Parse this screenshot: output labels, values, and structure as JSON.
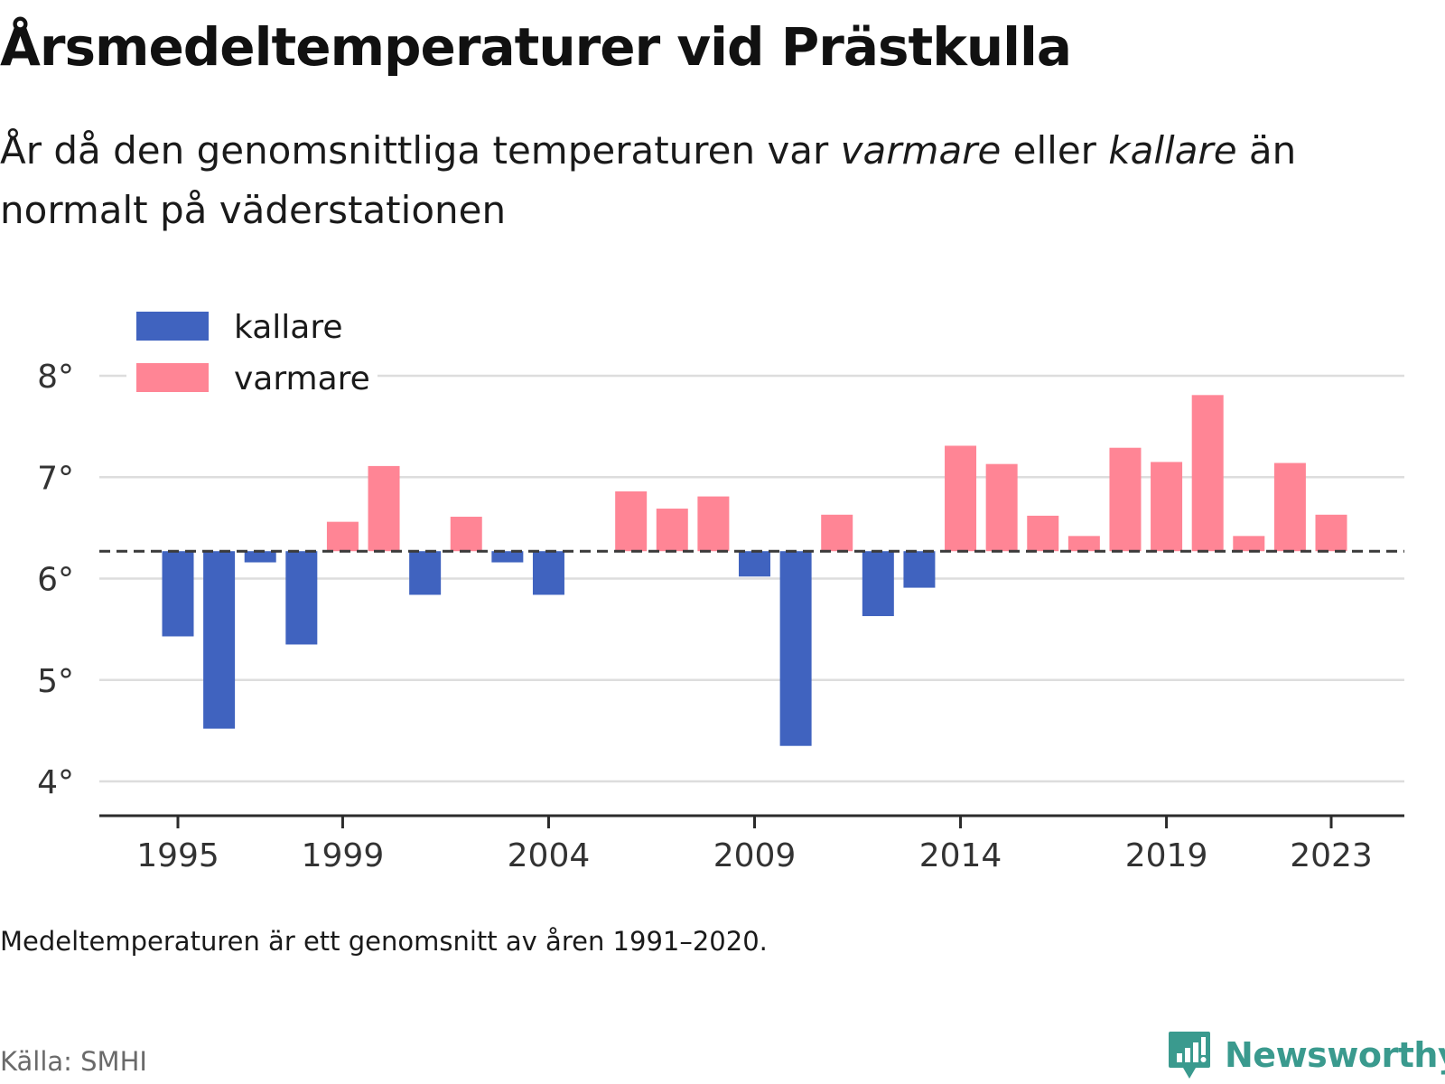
{
  "header": {
    "title": "Årsmedeltemperaturer vid Prästkulla",
    "subtitle_part1": "År då den genomsnittliga temperaturen var ",
    "subtitle_em1": "varmare",
    "subtitle_part2": " eller ",
    "subtitle_em2": "kallare",
    "subtitle_part3": " än normalt på väderstationen"
  },
  "chart_data": {
    "type": "bar",
    "baseline": 6.27,
    "ylim": [
      3.6,
      8.2
    ],
    "y_ticks": [
      4,
      5,
      6,
      7,
      8
    ],
    "y_tick_labels": [
      "4°",
      "5°",
      "6°",
      "7°",
      "8°"
    ],
    "x_ticks": [
      1995,
      1999,
      2004,
      2009,
      2014,
      2019,
      2023
    ],
    "x_tick_labels": [
      "1995",
      "1999",
      "2004",
      "2009",
      "2014",
      "2019",
      "2023"
    ],
    "grid": true,
    "legend_position": "top-left",
    "legend": [
      {
        "label": "kallare",
        "color": "#4063BF"
      },
      {
        "label": "varmare",
        "color": "#FF8595"
      }
    ],
    "years": [
      1995,
      1996,
      1997,
      1998,
      1999,
      2000,
      2001,
      2002,
      2003,
      2004,
      2005,
      2006,
      2007,
      2008,
      2009,
      2010,
      2011,
      2012,
      2013,
      2014,
      2015,
      2016,
      2017,
      2018,
      2019,
      2020,
      2021,
      2022,
      2023
    ],
    "values": [
      5.43,
      4.52,
      6.16,
      5.35,
      6.56,
      7.11,
      5.84,
      6.61,
      6.16,
      5.84,
      null,
      6.86,
      6.69,
      6.81,
      6.02,
      4.35,
      6.63,
      5.63,
      5.91,
      7.31,
      7.13,
      6.62,
      6.42,
      7.29,
      7.15,
      7.81,
      6.42,
      7.14,
      6.63
    ]
  },
  "footer": {
    "note": "Medeltemperaturen är ett genomsnitt av åren 1991–2020.",
    "source": "Källa: SMHI",
    "brand": "Newsworthy"
  }
}
